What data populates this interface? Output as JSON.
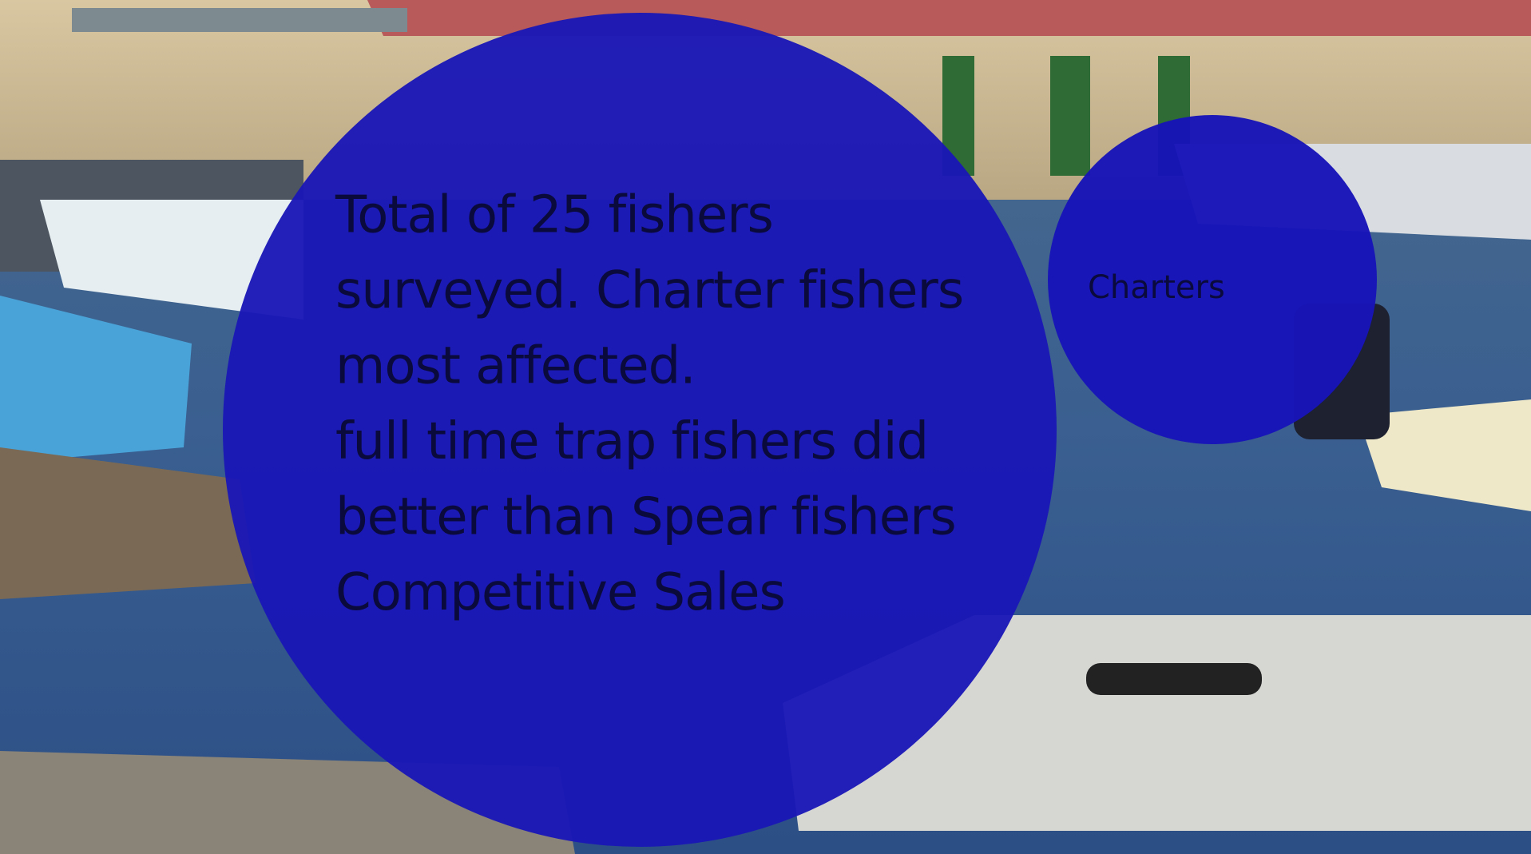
{
  "slide": {
    "main_text": [
      "Total of 25 fishers",
      "surveyed. Charter fishers",
      "most affected.",
      "full time trap fishers did",
      "better than Spear fishers",
      "Competitive Sales"
    ],
    "side_label": "Charters"
  }
}
